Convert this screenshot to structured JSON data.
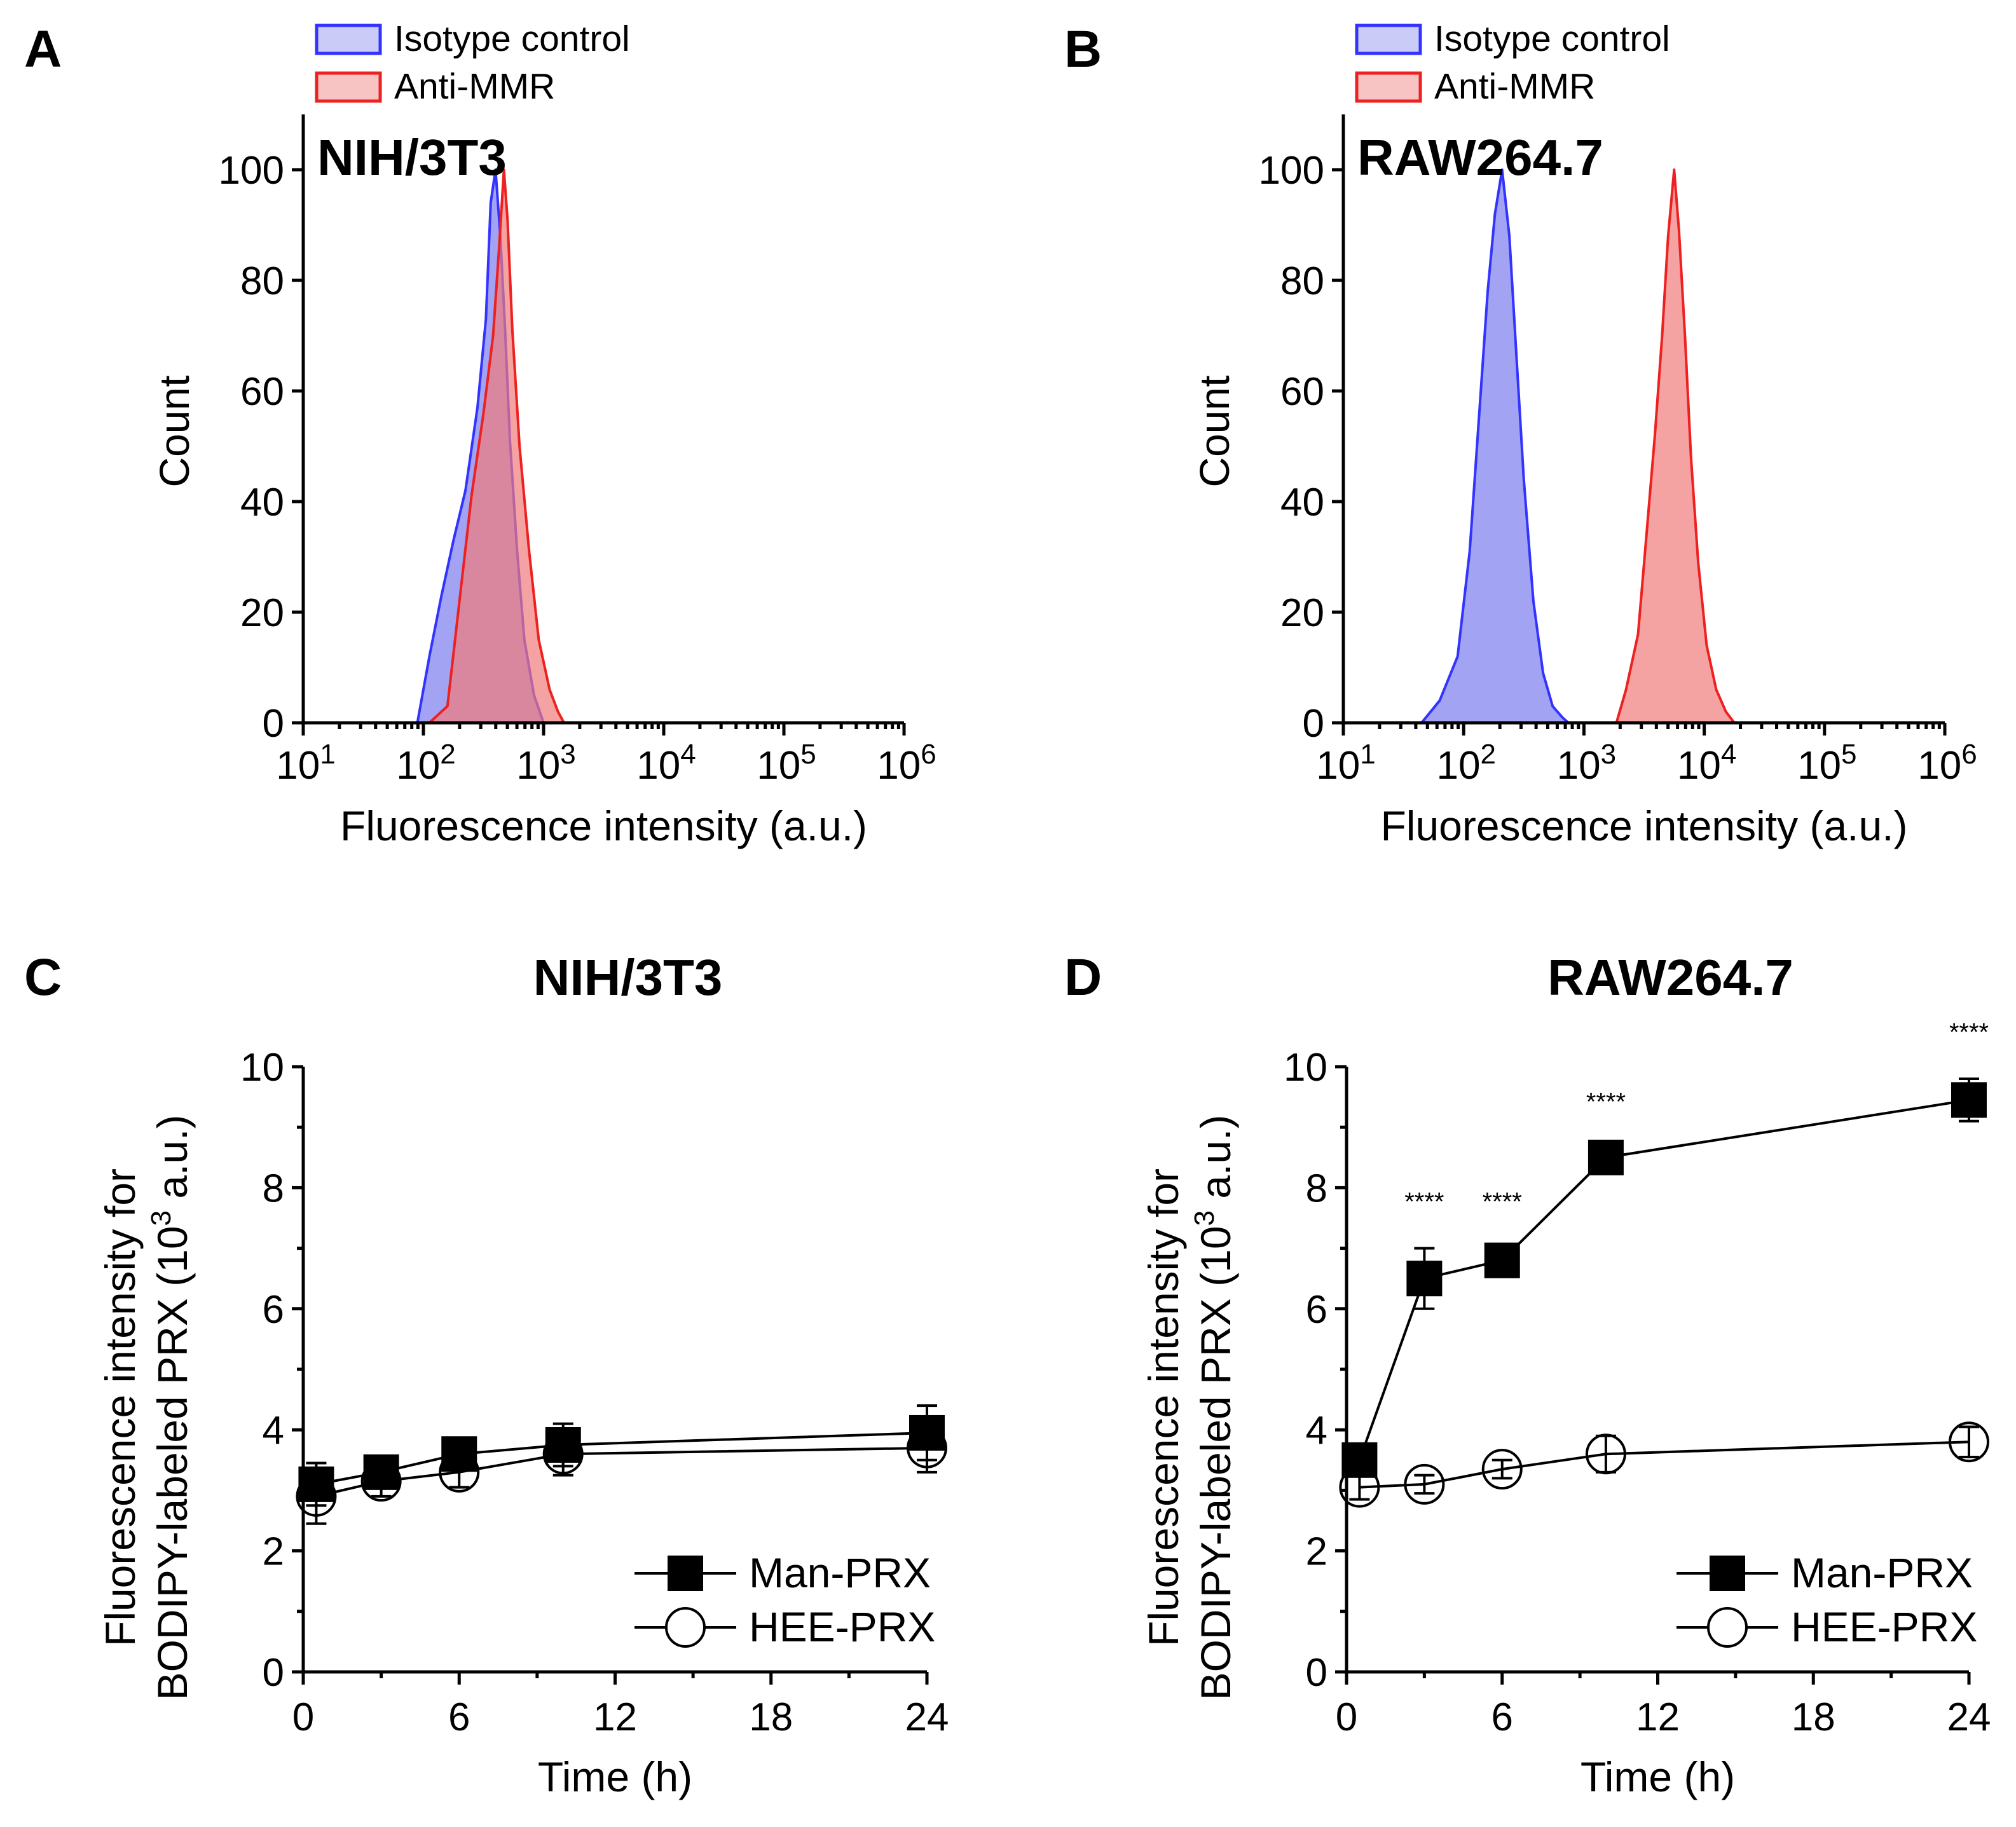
{
  "colors": {
    "isotype": "#3333ff",
    "isotype_fill": "#8c8cf0",
    "anti": "#ee2020",
    "anti_fill": "#f07a7a",
    "overlap_fill": "#b5347a"
  },
  "chart_data": [
    {
      "panel": "A",
      "type": "area",
      "title": "NIH/3T3",
      "xlabel": "Fluorescence intensity (a.u.)",
      "ylabel": "Count",
      "xscale": "log",
      "xlim_log10": [
        1,
        6
      ],
      "ylim": [
        0,
        110
      ],
      "yticks": [
        "0",
        "20",
        "40",
        "60",
        "80",
        "100"
      ],
      "xticks": [
        {
          "base": "10",
          "exp": "1"
        },
        {
          "base": "10",
          "exp": "2"
        },
        {
          "base": "10",
          "exp": "3"
        },
        {
          "base": "10",
          "exp": "4"
        },
        {
          "base": "10",
          "exp": "5"
        },
        {
          "base": "10",
          "exp": "6"
        }
      ],
      "legend": [
        "Isotype control",
        "Anti-MMR"
      ],
      "legend_position": "top",
      "series": [
        {
          "name": "Isotype control",
          "x_log10": [
            1.95,
            2.05,
            2.15,
            2.25,
            2.35,
            2.45,
            2.52,
            2.56,
            2.6,
            2.64,
            2.68,
            2.72,
            2.78,
            2.84,
            2.92,
            3.0
          ],
          "y": [
            0,
            12,
            23,
            33,
            42,
            57,
            73,
            94,
            100,
            88,
            71,
            51,
            31,
            15,
            5,
            0
          ]
        },
        {
          "name": "Anti-MMR",
          "x_log10": [
            2.05,
            2.2,
            2.3,
            2.4,
            2.5,
            2.58,
            2.63,
            2.67,
            2.7,
            2.74,
            2.8,
            2.88,
            2.96,
            3.05,
            3.12,
            3.17
          ],
          "y": [
            0,
            3,
            22,
            41,
            56,
            70,
            86,
            100,
            91,
            71,
            50,
            31,
            15,
            6,
            2,
            0
          ]
        }
      ]
    },
    {
      "panel": "B",
      "type": "area",
      "title": "RAW264.7",
      "xlabel": "Fluorescence intensity (a.u.)",
      "ylabel": "Count",
      "xscale": "log",
      "xlim_log10": [
        1,
        6
      ],
      "ylim": [
        0,
        110
      ],
      "yticks": [
        "0",
        "20",
        "40",
        "60",
        "80",
        "100"
      ],
      "xticks": [
        {
          "base": "10",
          "exp": "1"
        },
        {
          "base": "10",
          "exp": "2"
        },
        {
          "base": "10",
          "exp": "3"
        },
        {
          "base": "10",
          "exp": "4"
        },
        {
          "base": "10",
          "exp": "5"
        },
        {
          "base": "10",
          "exp": "6"
        }
      ],
      "legend": [
        "Isotype control",
        "Anti-MMR"
      ],
      "legend_position": "top",
      "series": [
        {
          "name": "Isotype control",
          "x_log10": [
            1.65,
            1.8,
            1.95,
            2.05,
            2.13,
            2.2,
            2.26,
            2.32,
            2.38,
            2.44,
            2.5,
            2.58,
            2.66,
            2.74,
            2.82,
            2.87
          ],
          "y": [
            0,
            4,
            12,
            31,
            56,
            78,
            92,
            100,
            88,
            66,
            44,
            22,
            9,
            3,
            1,
            0
          ]
        },
        {
          "name": "Anti-MMR",
          "x_log10": [
            3.27,
            3.35,
            3.45,
            3.52,
            3.59,
            3.65,
            3.7,
            3.75,
            3.79,
            3.84,
            3.89,
            3.95,
            4.02,
            4.1,
            4.18,
            4.25
          ],
          "y": [
            0,
            6,
            16,
            34,
            52,
            70,
            88,
            100,
            89,
            70,
            48,
            29,
            14,
            6,
            2,
            0
          ]
        }
      ]
    },
    {
      "panel": "C",
      "type": "line",
      "title": "NIH/3T3",
      "xlabel": "Time (h)",
      "ylabel_line1": "Fluorescence intensity for",
      "ylabel_line2": "BODIPY-labeled PRX (10",
      "ylabel_exp": "3",
      "ylabel_end": " a.u.)",
      "xlim": [
        0,
        24
      ],
      "ylim": [
        0,
        10
      ],
      "xticks": [
        "0",
        "6",
        "12",
        "18",
        "24"
      ],
      "yticks": [
        "0",
        "2",
        "4",
        "6",
        "8",
        "10"
      ],
      "legend": [
        "Man-PRX",
        "HEE-PRX"
      ],
      "legend_position": "bottom-right",
      "x": [
        0.5,
        3,
        6,
        10,
        24
      ],
      "series": [
        {
          "name": "Man-PRX",
          "marker": "filled-square",
          "values": [
            3.1,
            3.3,
            3.6,
            3.75,
            3.95
          ],
          "errors": [
            0.35,
            0.2,
            0.2,
            0.35,
            0.45
          ]
        },
        {
          "name": "HEE-PRX",
          "marker": "open-circle",
          "values": [
            2.9,
            3.15,
            3.3,
            3.6,
            3.7
          ],
          "errors": [
            0.45,
            0.25,
            0.25,
            0.35,
            0.4
          ]
        }
      ],
      "annotations": []
    },
    {
      "panel": "D",
      "type": "line",
      "title": "RAW264.7",
      "xlabel": "Time (h)",
      "ylabel_line1": "Fluorescence intensity for",
      "ylabel_line2": "BODIPY-labeled PRX (10",
      "ylabel_exp": "3",
      "ylabel_end": " a.u.)",
      "xlim": [
        0,
        24
      ],
      "ylim": [
        0,
        10
      ],
      "xticks": [
        "0",
        "6",
        "12",
        "18",
        "24"
      ],
      "yticks": [
        "0",
        "2",
        "4",
        "6",
        "8",
        "10"
      ],
      "legend": [
        "Man-PRX",
        "HEE-PRX"
      ],
      "legend_position": "bottom-right",
      "x": [
        0.5,
        3,
        6,
        10,
        24
      ],
      "series": [
        {
          "name": "Man-PRX",
          "marker": "filled-square",
          "values": [
            3.5,
            6.5,
            6.8,
            8.5,
            9.45
          ],
          "errors": [
            0.15,
            0.5,
            0.2,
            0.15,
            0.35
          ]
        },
        {
          "name": "HEE-PRX",
          "marker": "open-circle",
          "values": [
            3.05,
            3.1,
            3.35,
            3.6,
            3.8
          ],
          "errors": [
            0.2,
            0.15,
            0.15,
            0.3,
            0.25
          ]
        }
      ],
      "annotations": [
        {
          "x": 3,
          "text": "****"
        },
        {
          "x": 6,
          "text": "****"
        },
        {
          "x": 10,
          "text": "****"
        },
        {
          "x": 24,
          "text": "****"
        }
      ]
    }
  ]
}
